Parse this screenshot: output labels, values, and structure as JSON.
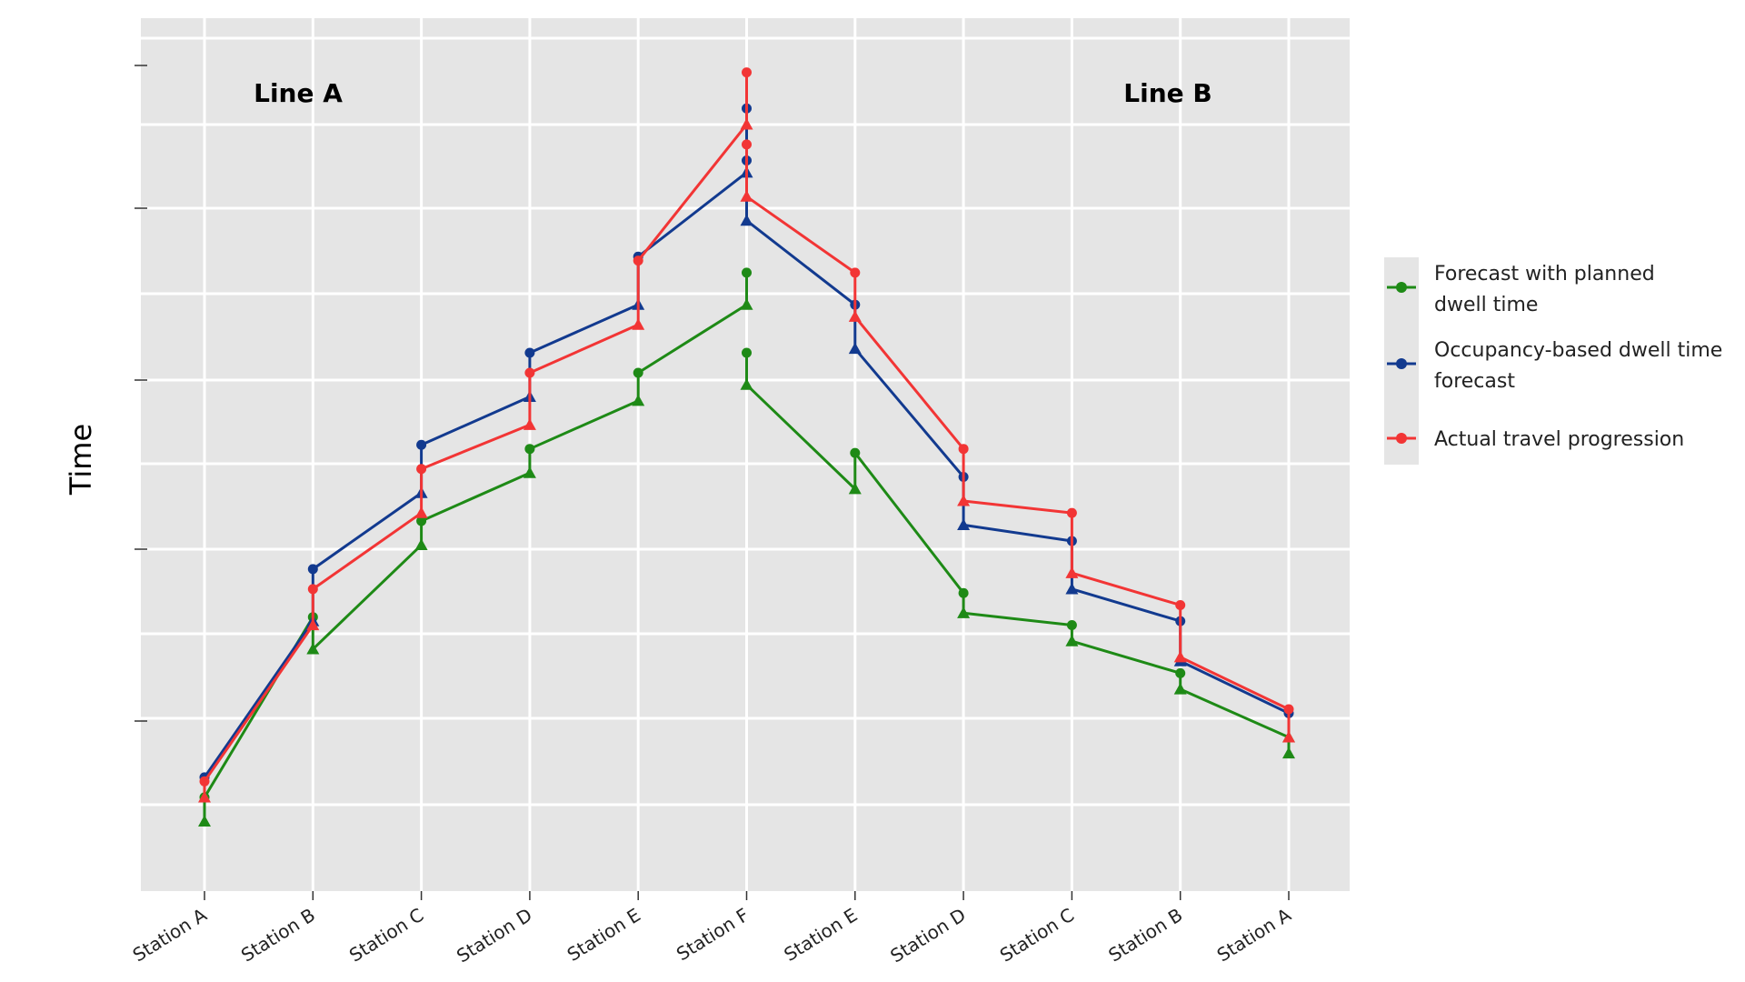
{
  "chart_data": {
    "type": "line",
    "title": "",
    "xlabel": "",
    "ylabel": "Time",
    "ylim": [
      0,
      100
    ],
    "categories": [
      "Station A",
      "Station B",
      "Station C",
      "Station D",
      "Station E",
      "Station F",
      "Station E",
      "Station D",
      "Station C",
      "Station B",
      "Station A"
    ],
    "annotations": {
      "left": "Line A",
      "right": "Line B"
    },
    "colors": {
      "green": "#1e8a16",
      "blue": "#123a8f",
      "red": "#f23535",
      "panel": "#e5e5e5",
      "grid": "#ffffff"
    },
    "series": [
      {
        "name": "Forecast with planned dwell time",
        "color": "#1e8a16",
        "segments": [
          [
            {
              "x": 0,
              "y": 4.5,
              "m": "t"
            },
            {
              "x": 0,
              "y": 7.5,
              "m": "c"
            },
            {
              "x": 1,
              "y": 30,
              "m": "c"
            },
            {
              "x": 1,
              "y": 26,
              "m": "t"
            },
            {
              "x": 2,
              "y": 39,
              "m": "t"
            },
            {
              "x": 2,
              "y": 42,
              "m": "c"
            },
            {
              "x": 3,
              "y": 48,
              "m": "t"
            },
            {
              "x": 3,
              "y": 51,
              "m": "c"
            },
            {
              "x": 4,
              "y": 57,
              "m": "t"
            },
            {
              "x": 4,
              "y": 60.5,
              "m": "c"
            },
            {
              "x": 5,
              "y": 69,
              "m": "t"
            },
            {
              "x": 5,
              "y": 73,
              "m": "c"
            }
          ],
          [
            {
              "x": 5,
              "y": 63,
              "m": "c"
            },
            {
              "x": 5,
              "y": 59,
              "m": "t"
            },
            {
              "x": 6,
              "y": 46,
              "m": "t"
            },
            {
              "x": 6,
              "y": 50.5,
              "m": "c"
            },
            {
              "x": 7,
              "y": 33,
              "m": "c"
            },
            {
              "x": 7,
              "y": 30.5,
              "m": "t"
            },
            {
              "x": 8,
              "y": 29,
              "m": "c"
            },
            {
              "x": 8,
              "y": 27,
              "m": "t"
            },
            {
              "x": 9,
              "y": 23,
              "m": "c"
            },
            {
              "x": 9,
              "y": 21,
              "m": "t"
            },
            {
              "x": 10,
              "y": 15,
              "m": "t"
            },
            {
              "x": 10,
              "y": 13,
              "m": "t"
            }
          ]
        ]
      },
      {
        "name": "Occupancy-based dwell time forecast",
        "color": "#123a8f",
        "segments": [
          [
            {
              "x": 0,
              "y": 10,
              "m": "c"
            },
            {
              "x": 1,
              "y": 29.5,
              "m": "t"
            },
            {
              "x": 1,
              "y": 36,
              "m": "c"
            },
            {
              "x": 2,
              "y": 45.5,
              "m": "t"
            },
            {
              "x": 2,
              "y": 51.5,
              "m": "c"
            },
            {
              "x": 3,
              "y": 57.5,
              "m": "t"
            },
            {
              "x": 3,
              "y": 63,
              "m": "c"
            },
            {
              "x": 4,
              "y": 69,
              "m": "t"
            },
            {
              "x": 4,
              "y": 75,
              "m": "c"
            },
            {
              "x": 5,
              "y": 85.5,
              "m": "t"
            },
            {
              "x": 5,
              "y": 87,
              "m": "c"
            }
          ],
          [
            {
              "x": 5,
              "y": 93.5,
              "m": "c"
            },
            {
              "x": 5,
              "y": 79.5,
              "m": "t"
            },
            {
              "x": 6,
              "y": 69,
              "m": "c"
            },
            {
              "x": 6,
              "y": 63.5,
              "m": "t"
            },
            {
              "x": 7,
              "y": 47.5,
              "m": "c"
            },
            {
              "x": 7,
              "y": 41.5,
              "m": "t"
            },
            {
              "x": 8,
              "y": 39.5,
              "m": "c"
            },
            {
              "x": 8,
              "y": 33.5,
              "m": "t"
            },
            {
              "x": 9,
              "y": 29.5,
              "m": "c"
            },
            {
              "x": 9,
              "y": 24.5,
              "m": "t"
            },
            {
              "x": 10,
              "y": 18,
              "m": "c"
            }
          ]
        ]
      },
      {
        "name": "Actual travel progression",
        "color": "#f23535",
        "segments": [
          [
            {
              "x": 0,
              "y": 7.5,
              "m": "t"
            },
            {
              "x": 0,
              "y": 9.5,
              "m": "c"
            },
            {
              "x": 1,
              "y": 29,
              "m": "t"
            },
            {
              "x": 1,
              "y": 33.5,
              "m": "c"
            },
            {
              "x": 2,
              "y": 43,
              "m": "t"
            },
            {
              "x": 2,
              "y": 48.5,
              "m": "c"
            },
            {
              "x": 3,
              "y": 54,
              "m": "t"
            },
            {
              "x": 3,
              "y": 60.5,
              "m": "c"
            },
            {
              "x": 4,
              "y": 66.5,
              "m": "t"
            },
            {
              "x": 4,
              "y": 74.5,
              "m": "c"
            },
            {
              "x": 5,
              "y": 91.5,
              "m": "t"
            },
            {
              "x": 5,
              "y": 98,
              "m": "c"
            }
          ],
          [
            {
              "x": 5,
              "y": 89,
              "m": "c"
            },
            {
              "x": 5,
              "y": 82.5,
              "m": "t"
            },
            {
              "x": 6,
              "y": 73,
              "m": "c"
            },
            {
              "x": 6,
              "y": 67.5,
              "m": "t"
            },
            {
              "x": 7,
              "y": 51,
              "m": "c"
            },
            {
              "x": 7,
              "y": 44.5,
              "m": "t"
            },
            {
              "x": 8,
              "y": 43,
              "m": "c"
            },
            {
              "x": 8,
              "y": 35.5,
              "m": "t"
            },
            {
              "x": 9,
              "y": 31.5,
              "m": "c"
            },
            {
              "x": 9,
              "y": 25,
              "m": "t"
            },
            {
              "x": 10,
              "y": 18.5,
              "m": "c"
            },
            {
              "x": 10,
              "y": 15,
              "m": "t"
            }
          ]
        ]
      }
    ],
    "legend": [
      {
        "lines": [
          "Forecast with planned",
          "dwell time"
        ],
        "color": "#1e8a16"
      },
      {
        "lines": [
          "Occupancy-based dwell time",
          "forecast"
        ],
        "color": "#123a8f"
      },
      {
        "lines": [
          "Actual travel progression"
        ],
        "color": "#f23535"
      }
    ],
    "legend_position": "right",
    "grid": true
  }
}
